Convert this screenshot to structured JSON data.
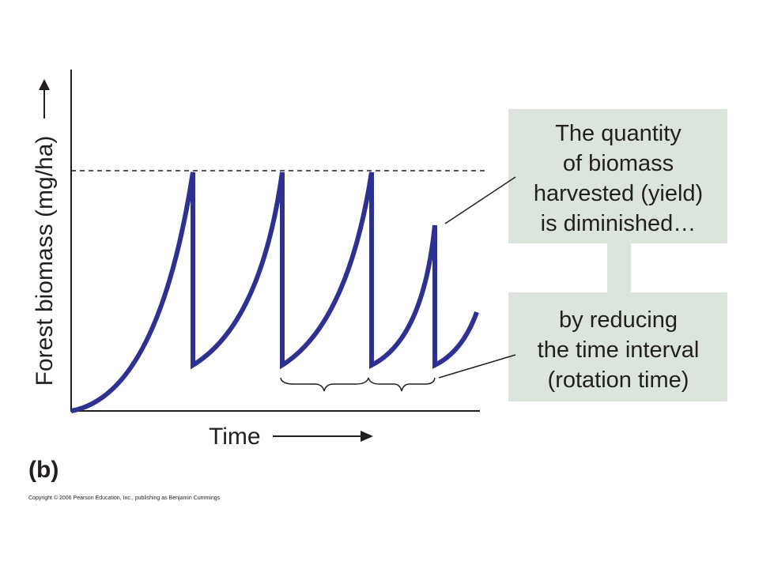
{
  "axis": {
    "y_label": "Forest biomass (mg/ha)",
    "x_label": "Time"
  },
  "callouts": [
    {
      "lines": [
        "The quantity",
        "of biomass",
        "harvested (yield)",
        "is diminished…"
      ]
    },
    {
      "lines": [
        "by reducing",
        "the time interval",
        "(rotation time)"
      ]
    }
  ],
  "panel_label": "(b)",
  "copyright": "Copyright © 2006 Pearson Education, Inc., publishing as Benjamin Cummings"
}
